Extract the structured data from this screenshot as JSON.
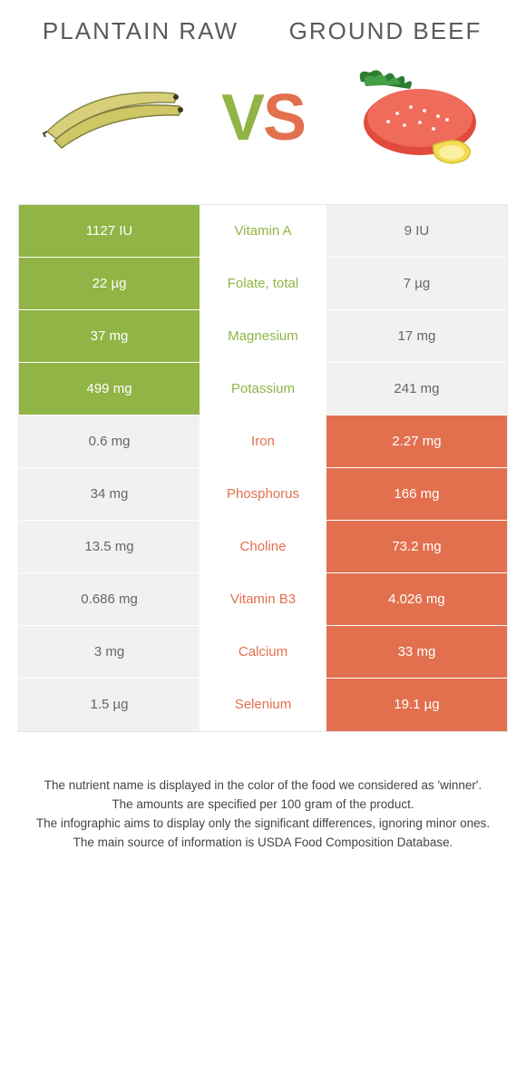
{
  "colors": {
    "left": "#90b445",
    "right": "#e2704e"
  },
  "foods": {
    "left": {
      "name": "Plantain raw"
    },
    "right": {
      "name": "Ground beef"
    }
  },
  "vs": "VS",
  "nutrients": [
    {
      "name": "Vitamin A",
      "left": "1127 IU",
      "right": "9 IU",
      "winner": "left"
    },
    {
      "name": "Folate, total",
      "left": "22 µg",
      "right": "7 µg",
      "winner": "left"
    },
    {
      "name": "Magnesium",
      "left": "37 mg",
      "right": "17 mg",
      "winner": "left"
    },
    {
      "name": "Potassium",
      "left": "499 mg",
      "right": "241 mg",
      "winner": "left"
    },
    {
      "name": "Iron",
      "left": "0.6 mg",
      "right": "2.27 mg",
      "winner": "right"
    },
    {
      "name": "Phosphorus",
      "left": "34 mg",
      "right": "166 mg",
      "winner": "right"
    },
    {
      "name": "Choline",
      "left": "13.5 mg",
      "right": "73.2 mg",
      "winner": "right"
    },
    {
      "name": "Vitamin B3",
      "left": "0.686 mg",
      "right": "4.026 mg",
      "winner": "right"
    },
    {
      "name": "Calcium",
      "left": "3 mg",
      "right": "33 mg",
      "winner": "right"
    },
    {
      "name": "Selenium",
      "left": "1.5 µg",
      "right": "19.1 µg",
      "winner": "right"
    }
  ],
  "footnotes": [
    "The nutrient name is displayed in the color of the food we considered as 'winner'.",
    "The amounts are specified per 100 gram of the product.",
    "The infographic aims to display only the significant differences, ignoring minor ones.",
    "The main source of information is USDA Food Composition Database."
  ]
}
